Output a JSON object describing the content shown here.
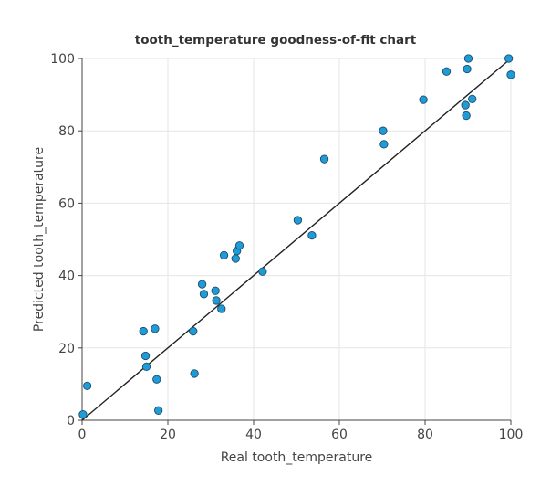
{
  "chart_data": {
    "type": "scatter",
    "title": "tooth_temperature goodness-of-fit chart",
    "xlabel": "Real tooth_temperature",
    "ylabel": "Predicted tooth_temperature",
    "xlim": [
      0,
      100
    ],
    "ylim": [
      0,
      100
    ],
    "xticks": [
      0,
      20,
      40,
      60,
      80,
      100
    ],
    "yticks": [
      0,
      20,
      40,
      60,
      80,
      100
    ],
    "grid": true,
    "colors": {
      "point_fill": "#1f9bd7",
      "point_stroke": "#1b4d6b",
      "fit_line": "#222222"
    },
    "fit_line": {
      "from": [
        0,
        0
      ],
      "to": [
        100,
        100
      ]
    },
    "points": [
      [
        0.2,
        1.6
      ],
      [
        1.2,
        9.5
      ],
      [
        14.3,
        24.6
      ],
      [
        14.8,
        17.8
      ],
      [
        15.0,
        14.8
      ],
      [
        17.0,
        25.3
      ],
      [
        17.4,
        11.3
      ],
      [
        17.8,
        2.7
      ],
      [
        25.9,
        24.6
      ],
      [
        26.2,
        12.9
      ],
      [
        28.0,
        37.6
      ],
      [
        28.4,
        34.9
      ],
      [
        31.1,
        35.8
      ],
      [
        31.3,
        33.1
      ],
      [
        32.5,
        30.8
      ],
      [
        33.1,
        45.6
      ],
      [
        35.8,
        44.7
      ],
      [
        36.1,
        46.8
      ],
      [
        36.7,
        48.3
      ],
      [
        42.1,
        41.1
      ],
      [
        50.3,
        55.3
      ],
      [
        53.6,
        51.1
      ],
      [
        56.5,
        72.2
      ],
      [
        70.2,
        80.0
      ],
      [
        70.4,
        76.3
      ],
      [
        79.6,
        88.6
      ],
      [
        85.0,
        96.4
      ],
      [
        89.4,
        87.1
      ],
      [
        89.6,
        84.2
      ],
      [
        89.8,
        97.1
      ],
      [
        90.1,
        100.0
      ],
      [
        91.0,
        88.8
      ],
      [
        99.5,
        100.0
      ],
      [
        100.0,
        95.5
      ]
    ]
  }
}
